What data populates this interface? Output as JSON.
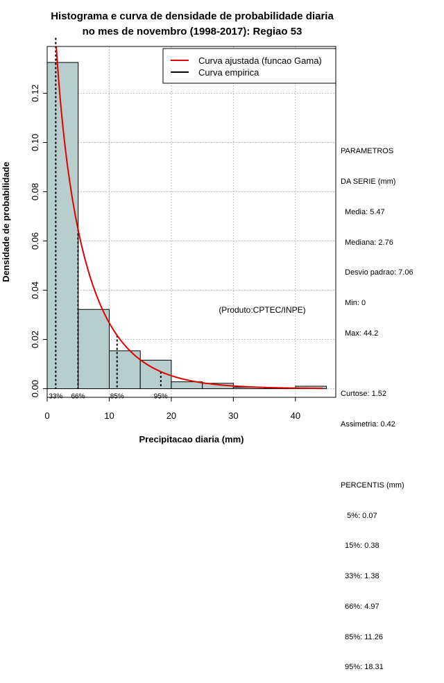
{
  "chart_data": {
    "type": "bar",
    "title": [
      "Histograma e curva de densidade de probabilidade diaria",
      "no mes de novembro (1998-2017): Regiao 53"
    ],
    "xlabel": "Precipitacao diaria (mm)",
    "ylabel": "Densidade de probabilidade",
    "xlim": [
      0,
      46.5
    ],
    "ylim": [
      -0.0035,
      0.139
    ],
    "x_ticks": [
      0,
      10,
      20,
      30,
      40
    ],
    "y_ticks": [
      0.0,
      0.02,
      0.04,
      0.06,
      0.08,
      0.1,
      0.12
    ],
    "y_tick_labels": [
      "0.00",
      "0.02",
      "0.04",
      "0.06",
      "0.08",
      "0.10",
      "0.12"
    ],
    "grid": true,
    "bin_width": 5,
    "bins": [
      {
        "start": 0,
        "end": 5,
        "density": 0.1325
      },
      {
        "start": 5,
        "end": 10,
        "density": 0.0322
      },
      {
        "start": 10,
        "end": 15,
        "density": 0.0154
      },
      {
        "start": 15,
        "end": 20,
        "density": 0.0116
      },
      {
        "start": 20,
        "end": 25,
        "density": 0.0028
      },
      {
        "start": 25,
        "end": 30,
        "density": 0.0022
      },
      {
        "start": 30,
        "end": 35,
        "density": 0.0006
      },
      {
        "start": 35,
        "end": 40,
        "density": 0.0003
      },
      {
        "start": 40,
        "end": 45,
        "density": 0.001
      }
    ],
    "fitted_curve": {
      "name": "Curva ajustada (funcao Gama)",
      "color": "#e00000",
      "distribution": "gamma",
      "shape": 0.8,
      "scale": 6.75,
      "x_range": [
        1.35,
        44.5
      ]
    },
    "empirical_curve": {
      "name": "Curva empirica",
      "color": "#000000"
    },
    "percentile_markers": [
      {
        "label": "33%",
        "x": 1.38
      },
      {
        "label": "66%",
        "x": 4.97
      },
      {
        "label": "85%",
        "x": 11.26
      },
      {
        "label": "95%",
        "x": 18.31
      }
    ],
    "annotation": "(Produto:CPTEC/INPE)",
    "legend_position": "top-right",
    "bar_color": "#b8cece"
  },
  "side_panel": {
    "header1": "PARAMETROS",
    "header2": "DA SERIE (mm)",
    "media": "Media: 5.47",
    "mediana": "Mediana: 2.76",
    "desvio": "Desvio padrao: 7.06",
    "min": "Min: 0",
    "max": "Max: 44.2",
    "curtose": "Curtose: 1.52",
    "assimetria": "Assimetria: 0.42",
    "percentis_header": "PERCENTIS (mm)",
    "p5": "5%: 0.07",
    "p15": "15%: 0.38",
    "p33": "33%: 1.38",
    "p66": "66%: 4.97",
    "p85": "85%: 11.26",
    "p95": "95%: 18.31"
  }
}
